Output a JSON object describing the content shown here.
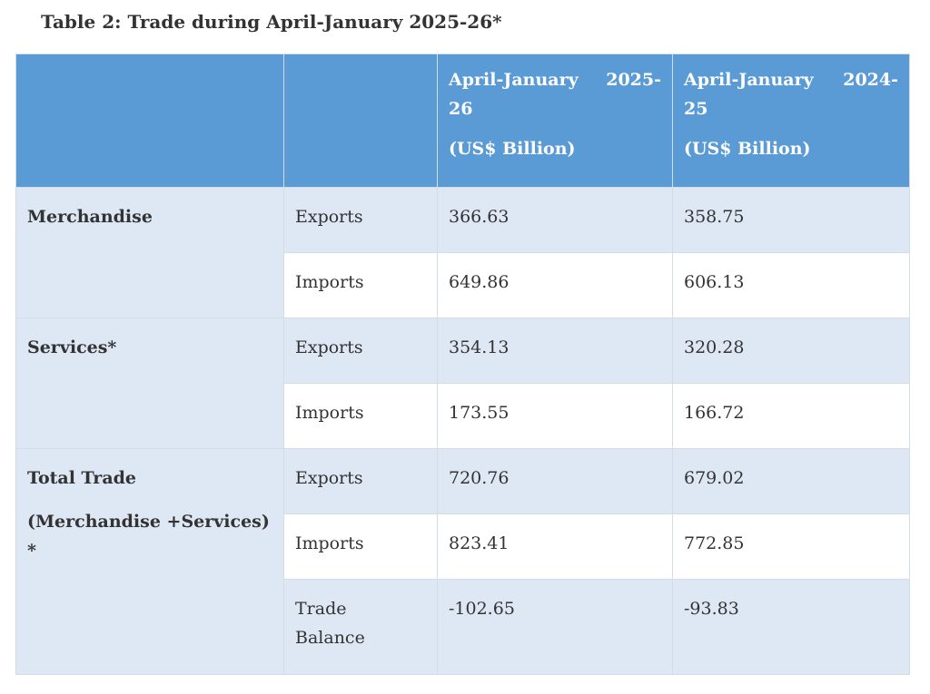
{
  "title": "Table 2: Trade during April-January 2025-26*",
  "table": {
    "columns": [
      {
        "period": "April-January 2025-26",
        "unit": "(US$ Billion)"
      },
      {
        "period": "April-January 2024-25",
        "unit": "(US$ Billion)"
      }
    ],
    "groups": [
      {
        "label": "Merchandise",
        "rows": [
          {
            "label": "Exports",
            "values": [
              "366.63",
              "358.75"
            ]
          },
          {
            "label": "Imports",
            "values": [
              "649.86",
              "606.13"
            ]
          }
        ]
      },
      {
        "label": "Services*",
        "rows": [
          {
            "label": "Exports",
            "values": [
              "354.13",
              "320.28"
            ]
          },
          {
            "label": "Imports",
            "values": [
              "173.55",
              "166.72"
            ]
          }
        ]
      },
      {
        "label": "Total Trade",
        "sublabel": "(Merchandise +Services) *",
        "rows": [
          {
            "label": "Exports",
            "values": [
              "720.76",
              "679.02"
            ]
          },
          {
            "label": "Imports",
            "values": [
              "823.41",
              "772.85"
            ]
          },
          {
            "label": "Trade Balance",
            "values": [
              "-102.65",
              "-93.83"
            ]
          }
        ]
      }
    ]
  }
}
